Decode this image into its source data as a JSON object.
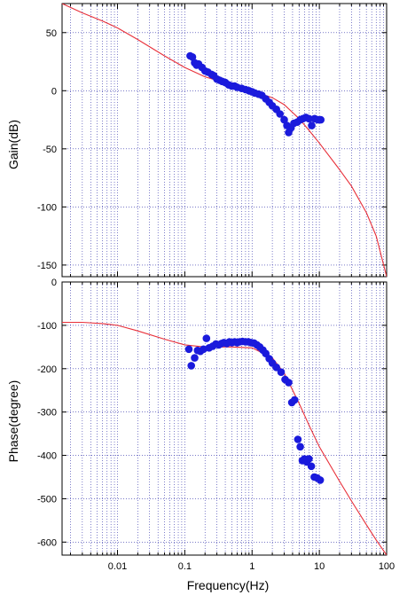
{
  "chart_data": [
    {
      "type": "scatter",
      "panel": "gain",
      "xscale": "log",
      "xlim": [
        0.0015,
        100
      ],
      "ylim": [
        -160,
        75
      ],
      "ylabel": "Gain(dB)",
      "yticks": [
        50,
        0,
        -50,
        -100,
        -150
      ],
      "grid": true,
      "series": [
        {
          "kind": "line",
          "color": "#e8303a",
          "points": [
            [
              0.0015,
              75
            ],
            [
              0.003,
              67
            ],
            [
              0.006,
              60
            ],
            [
              0.01,
              54
            ],
            [
              0.02,
              44
            ],
            [
              0.05,
              30
            ],
            [
              0.1,
              20
            ],
            [
              0.2,
              12
            ],
            [
              0.5,
              5
            ],
            [
              1,
              0
            ],
            [
              2,
              -6
            ],
            [
              3,
              -12
            ],
            [
              5,
              -24
            ],
            [
              7,
              -34
            ],
            [
              10,
              -45
            ],
            [
              20,
              -68
            ],
            [
              30,
              -82
            ],
            [
              50,
              -105
            ],
            [
              70,
              -125
            ],
            [
              100,
              -160
            ]
          ]
        },
        {
          "kind": "points",
          "color": "#1a1adc",
          "points": [
            [
              0.12,
              30
            ],
            [
              0.13,
              29
            ],
            [
              0.14,
              24
            ],
            [
              0.15,
              22
            ],
            [
              0.16,
              23
            ],
            [
              0.18,
              20
            ],
            [
              0.2,
              17
            ],
            [
              0.22,
              16
            ],
            [
              0.25,
              14
            ],
            [
              0.27,
              13
            ],
            [
              0.3,
              10
            ],
            [
              0.33,
              9
            ],
            [
              0.36,
              8
            ],
            [
              0.4,
              7
            ],
            [
              0.45,
              5
            ],
            [
              0.5,
              4
            ],
            [
              0.55,
              4
            ],
            [
              0.6,
              3
            ],
            [
              0.7,
              2
            ],
            [
              0.8,
              1
            ],
            [
              0.9,
              0
            ],
            [
              1,
              -1
            ],
            [
              1.1,
              -2
            ],
            [
              1.25,
              -3
            ],
            [
              1.4,
              -4
            ],
            [
              1.6,
              -7
            ],
            [
              1.8,
              -10
            ],
            [
              2,
              -13
            ],
            [
              2.3,
              -16
            ],
            [
              2.6,
              -20
            ],
            [
              3,
              -25
            ],
            [
              3.3,
              -30
            ],
            [
              3.5,
              -36
            ],
            [
              3.8,
              -32
            ],
            [
              4.2,
              -28
            ],
            [
              4.7,
              -27
            ],
            [
              5.2,
              -25
            ],
            [
              5.7,
              -24
            ],
            [
              6.3,
              -23
            ],
            [
              7,
              -24
            ],
            [
              7.7,
              -30
            ],
            [
              8.5,
              -24
            ],
            [
              9.5,
              -25
            ],
            [
              10.5,
              -25
            ]
          ]
        }
      ]
    },
    {
      "type": "scatter",
      "panel": "phase",
      "xscale": "log",
      "xlim": [
        0.0015,
        100
      ],
      "ylim": [
        -630,
        0
      ],
      "xlabel": "Frequency(Hz)",
      "ylabel": "Phase(degree)",
      "xticks": [
        "0.01",
        "0.1",
        "1",
        "10",
        "100"
      ],
      "xtick_values": [
        0.01,
        0.1,
        1,
        10,
        100
      ],
      "yticks": [
        0,
        -100,
        -200,
        -300,
        -400,
        -500,
        -600
      ],
      "grid": true,
      "series": [
        {
          "kind": "line",
          "color": "#e8303a",
          "points": [
            [
              0.0015,
              -93
            ],
            [
              0.003,
              -93
            ],
            [
              0.006,
              -96
            ],
            [
              0.01,
              -100
            ],
            [
              0.02,
              -113
            ],
            [
              0.05,
              -132
            ],
            [
              0.1,
              -145
            ],
            [
              0.2,
              -150
            ],
            [
              0.5,
              -150
            ],
            [
              1,
              -152
            ],
            [
              2,
              -175
            ],
            [
              3,
              -210
            ],
            [
              5,
              -280
            ],
            [
              7,
              -330
            ],
            [
              10,
              -380
            ],
            [
              20,
              -460
            ],
            [
              30,
              -505
            ],
            [
              50,
              -560
            ],
            [
              70,
              -595
            ],
            [
              100,
              -630
            ]
          ]
        },
        {
          "kind": "points",
          "color": "#1a1adc",
          "points": [
            [
              0.115,
              -155
            ],
            [
              0.125,
              -193
            ],
            [
              0.14,
              -175
            ],
            [
              0.155,
              -158
            ],
            [
              0.17,
              -160
            ],
            [
              0.19,
              -155
            ],
            [
              0.21,
              -130
            ],
            [
              0.23,
              -152
            ],
            [
              0.26,
              -148
            ],
            [
              0.29,
              -143
            ],
            [
              0.32,
              -145
            ],
            [
              0.35,
              -142
            ],
            [
              0.38,
              -140
            ],
            [
              0.42,
              -142
            ],
            [
              0.46,
              -138
            ],
            [
              0.5,
              -140
            ],
            [
              0.55,
              -138
            ],
            [
              0.6,
              -140
            ],
            [
              0.65,
              -138
            ],
            [
              0.72,
              -137
            ],
            [
              0.8,
              -138
            ],
            [
              0.88,
              -138
            ],
            [
              0.97,
              -140
            ],
            [
              1.07,
              -141
            ],
            [
              1.18,
              -145
            ],
            [
              1.3,
              -150
            ],
            [
              1.45,
              -157
            ],
            [
              1.6,
              -165
            ],
            [
              1.8,
              -177
            ],
            [
              2,
              -187
            ],
            [
              2.3,
              -197
            ],
            [
              2.7,
              -208
            ],
            [
              3.1,
              -225
            ],
            [
              3.5,
              -232
            ],
            [
              3.9,
              -278
            ],
            [
              4.3,
              -272
            ],
            [
              4.8,
              -363
            ],
            [
              5.2,
              -380
            ],
            [
              5.6,
              -412
            ],
            [
              6,
              -408
            ],
            [
              6.5,
              -415
            ],
            [
              7,
              -408
            ],
            [
              7.6,
              -425
            ],
            [
              8.4,
              -450
            ],
            [
              9.3,
              -452
            ],
            [
              10.3,
              -457
            ]
          ]
        }
      ]
    }
  ]
}
